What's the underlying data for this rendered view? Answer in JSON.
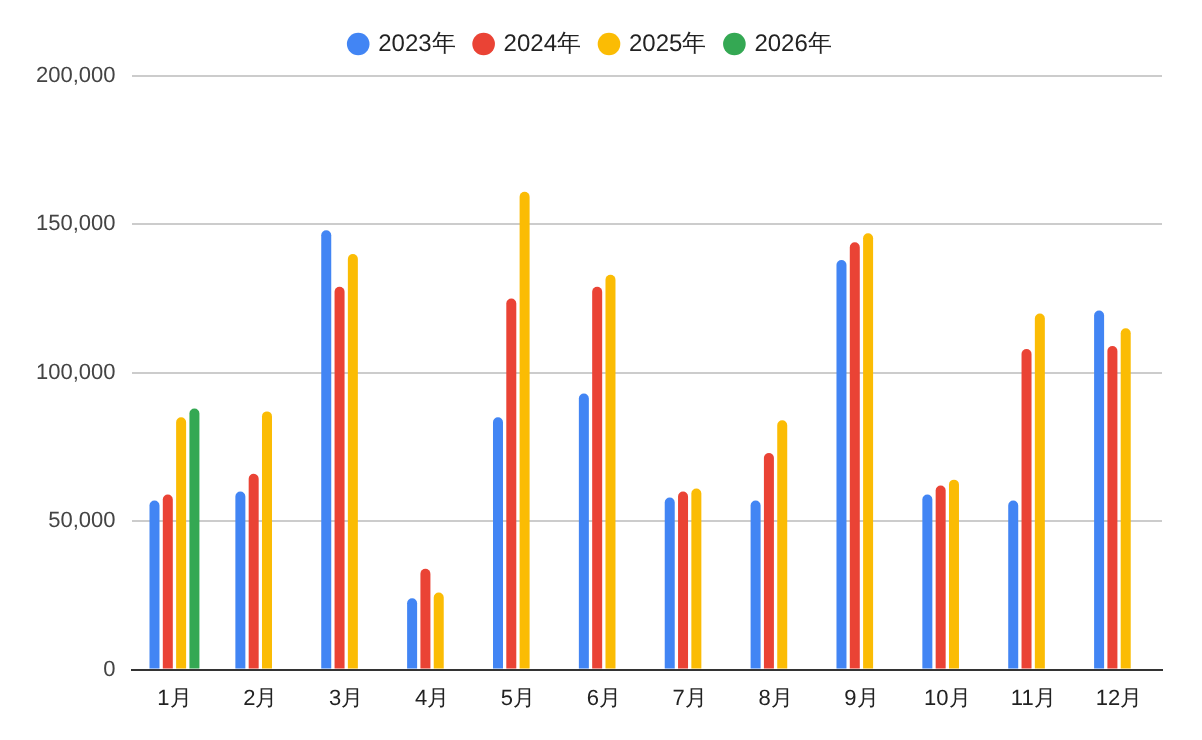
{
  "chart_data": {
    "type": "bar",
    "categories": [
      "1月",
      "2月",
      "3月",
      "4月",
      "5月",
      "6月",
      "7月",
      "8月",
      "9月",
      "10月",
      "11月",
      "12月"
    ],
    "series": [
      {
        "name": "2023年",
        "color": "#4285f4",
        "values": [
          57000,
          60000,
          148000,
          24000,
          85000,
          93000,
          58000,
          57000,
          138000,
          59000,
          57000,
          121000
        ]
      },
      {
        "name": "2024年",
        "color": "#ea4335",
        "values": [
          59000,
          66000,
          129000,
          34000,
          125000,
          129000,
          60000,
          73000,
          144000,
          62000,
          108000,
          109000
        ]
      },
      {
        "name": "2025年",
        "color": "#fbbc04",
        "values": [
          85000,
          87000,
          140000,
          26000,
          161000,
          133000,
          61000,
          84000,
          147000,
          64000,
          120000,
          115000
        ]
      },
      {
        "name": "2026年",
        "color": "#34a853",
        "values": [
          88000,
          null,
          null,
          null,
          null,
          null,
          null,
          null,
          null,
          null,
          null,
          null
        ]
      }
    ],
    "ylim": [
      0,
      200000
    ],
    "yticks": [
      {
        "value": 0,
        "label": "0"
      },
      {
        "value": 50000,
        "label": "50,000"
      },
      {
        "value": 100000,
        "label": "100,000"
      },
      {
        "value": 150000,
        "label": "150,000"
      },
      {
        "value": 200000,
        "label": "200,000"
      }
    ],
    "grid": "y",
    "legend": "top"
  }
}
